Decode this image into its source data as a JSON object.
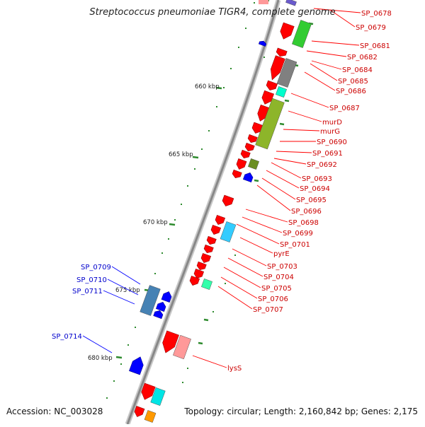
{
  "title": "Streptococcus pneumoniae TIGR4, complete genome",
  "footer": {
    "accession": "Accession: NC_003028",
    "summary": "Topology: circular; Length: 2,160,842 bp; Genes: 2,175"
  },
  "colors": {
    "forward_gene": "#ff0000",
    "reverse_gene": "#0000ff",
    "forward_label": "#cc0000",
    "reverse_label": "#0000cc",
    "scale": "#2e8b2e",
    "backbone": "#888888"
  },
  "scale_ticks": [
    {
      "label": "660 kbp"
    },
    {
      "label": "665 kbp"
    },
    {
      "label": "670 kbp"
    },
    {
      "label": "675 kbp"
    },
    {
      "label": "680 kbp"
    }
  ],
  "forward_labels": [
    "SP_0678",
    "SP_0679",
    "SP_0681",
    "SP_0682",
    "SP_0684",
    "SP_0685",
    "SP_0686",
    "SP_0687",
    "murD",
    "murG",
    "SP_0690",
    "SP_0691",
    "SP_0692",
    "SP_0693",
    "SP_0694",
    "SP_0695",
    "SP_0696",
    "SP_0698",
    "SP_0699",
    "SP_0701",
    "pyrE",
    "SP_0703",
    "SP_0704",
    "SP_0705",
    "SP_0706",
    "SP_0707",
    "lysS"
  ],
  "reverse_labels": [
    "SP_0709",
    "SP_0710",
    "SP_0711",
    "SP_0714"
  ]
}
